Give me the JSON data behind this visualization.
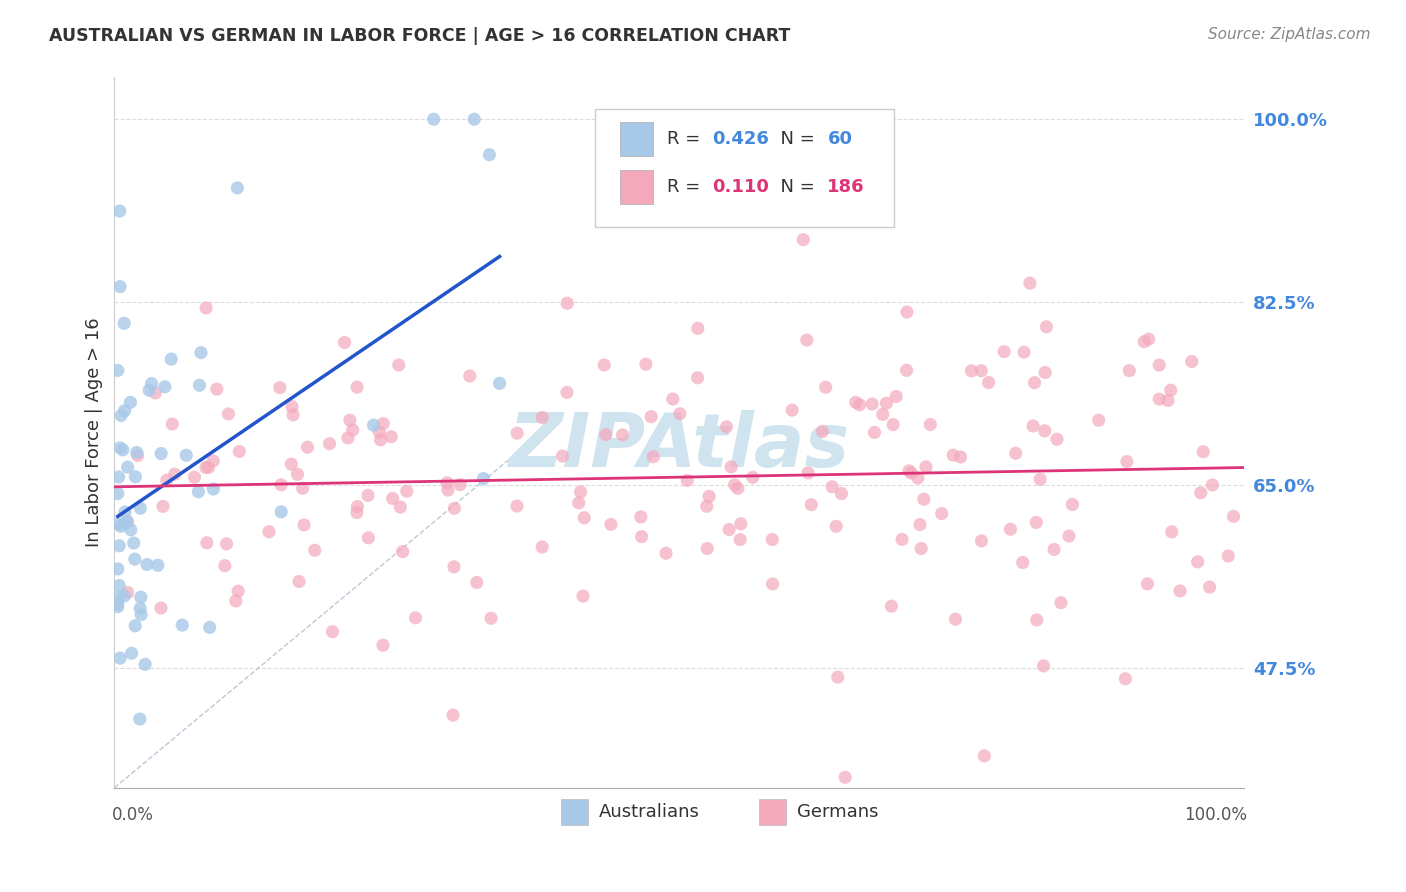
{
  "title": "AUSTRALIAN VS GERMAN IN LABOR FORCE | AGE > 16 CORRELATION CHART",
  "source": "Source: ZipAtlas.com",
  "ylabel": "In Labor Force | Age > 16",
  "ytick_labels": [
    "47.5%",
    "65.0%",
    "82.5%",
    "100.0%"
  ],
  "ytick_values": [
    0.475,
    0.65,
    0.825,
    1.0
  ],
  "xmin": 0.0,
  "xmax": 1.0,
  "ymin": 0.36,
  "ymax": 1.04,
  "legend_blue_R": "0.426",
  "legend_blue_N": "60",
  "legend_pink_R": "0.110",
  "legend_pink_N": "186",
  "blue_color": "#A8C8E8",
  "pink_color": "#F4A8BC",
  "blue_line_color": "#2255CC",
  "pink_line_color": "#DD3377",
  "diag_line_color": "#AABBCC",
  "text_color": "#333333",
  "blue_label_color": "#4488DD",
  "pink_label_color": "#DD3377",
  "ytick_color": "#4488DD",
  "grid_color": "#DDDDDD",
  "watermark_color": "#D0E4F0",
  "background_color": "#FFFFFF"
}
